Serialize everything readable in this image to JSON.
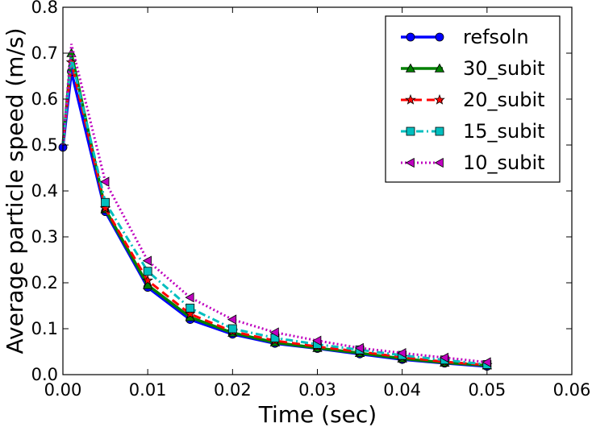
{
  "chart_data": {
    "type": "line",
    "title": "",
    "xlabel": "Time (sec)",
    "ylabel": "Average particle speed (m/s)",
    "xlim": [
      0.0,
      0.06
    ],
    "ylim": [
      0.0,
      0.8
    ],
    "xticks": [
      "0.00",
      "0.01",
      "0.02",
      "0.03",
      "0.04",
      "0.05",
      "0.06"
    ],
    "yticks": [
      "0.0",
      "0.1",
      "0.2",
      "0.3",
      "0.4",
      "0.5",
      "0.6",
      "0.7",
      "0.8"
    ],
    "legend_position": "top-right",
    "series": [
      {
        "name": "refsoln",
        "color": "#0000ff",
        "dash": "solid",
        "marker": "circle",
        "x": [
          0.0,
          0.001,
          0.005,
          0.01,
          0.015,
          0.02,
          0.025,
          0.03,
          0.035,
          0.04,
          0.045,
          0.05
        ],
        "y": [
          0.495,
          0.66,
          0.355,
          0.19,
          0.12,
          0.088,
          0.068,
          0.057,
          0.045,
          0.033,
          0.025,
          0.018
        ],
        "marker_x": [
          0.0,
          0.001,
          0.005,
          0.01,
          0.015,
          0.02,
          0.025,
          0.03,
          0.035,
          0.04,
          0.045,
          0.05
        ]
      },
      {
        "name": "30_subit",
        "color": "#008000",
        "dash": "solid",
        "marker": "triangle-up",
        "x": [
          0.0,
          0.001,
          0.005,
          0.01,
          0.015,
          0.02,
          0.025,
          0.03,
          0.035,
          0.04,
          0.045,
          0.05
        ],
        "y": [
          0.5,
          0.7,
          0.36,
          0.195,
          0.125,
          0.091,
          0.07,
          0.058,
          0.047,
          0.035,
          0.026,
          0.02
        ],
        "marker_x": [
          0.001,
          0.005,
          0.01,
          0.015,
          0.02,
          0.025,
          0.03,
          0.035,
          0.04,
          0.045,
          0.05
        ]
      },
      {
        "name": "20_subit",
        "color": "#ff0000",
        "dash": "dashed",
        "marker": "star",
        "x": [
          0.0,
          0.001,
          0.005,
          0.01,
          0.015,
          0.02,
          0.025,
          0.03,
          0.035,
          0.04,
          0.045,
          0.05
        ],
        "y": [
          0.5,
          0.68,
          0.362,
          0.205,
          0.132,
          0.094,
          0.074,
          0.061,
          0.05,
          0.038,
          0.028,
          0.021
        ],
        "marker_x": [
          0.001,
          0.005,
          0.01,
          0.015,
          0.02,
          0.025,
          0.03,
          0.035,
          0.04,
          0.045,
          0.05
        ]
      },
      {
        "name": "15_subit",
        "color": "#00bfbf",
        "dash": "dashdot",
        "marker": "square",
        "x": [
          0.0,
          0.001,
          0.005,
          0.01,
          0.015,
          0.02,
          0.025,
          0.03,
          0.035,
          0.04,
          0.045,
          0.05
        ],
        "y": [
          0.5,
          0.69,
          0.375,
          0.225,
          0.145,
          0.1,
          0.08,
          0.066,
          0.054,
          0.042,
          0.032,
          0.022
        ],
        "marker_x": [
          0.005,
          0.01,
          0.015,
          0.02,
          0.025,
          0.03,
          0.035,
          0.04,
          0.045,
          0.05
        ]
      },
      {
        "name": "10_subit",
        "color": "#bf00bf",
        "dash": "dotted",
        "marker": "triangle-left",
        "x": [
          0.0,
          0.001,
          0.005,
          0.01,
          0.015,
          0.02,
          0.025,
          0.03,
          0.035,
          0.04,
          0.045,
          0.05
        ],
        "y": [
          0.5,
          0.72,
          0.42,
          0.248,
          0.168,
          0.12,
          0.092,
          0.074,
          0.058,
          0.047,
          0.037,
          0.027
        ],
        "marker_x": [
          0.005,
          0.01,
          0.015,
          0.02,
          0.025,
          0.03,
          0.035,
          0.04,
          0.045,
          0.05
        ]
      }
    ]
  }
}
